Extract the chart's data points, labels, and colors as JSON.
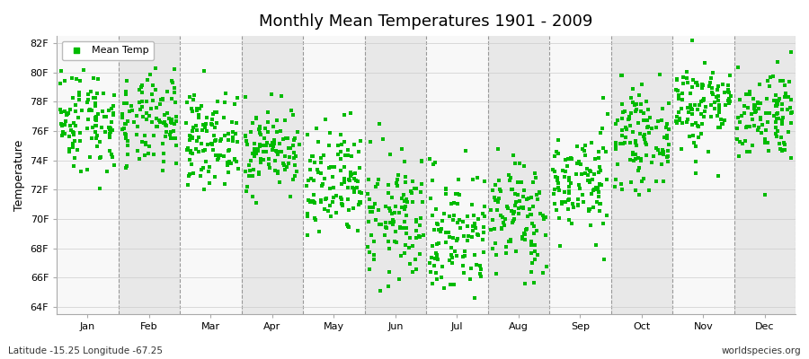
{
  "title": "Monthly Mean Temperatures 1901 - 2009",
  "ylabel": "Temperature",
  "xlabel_months": [
    "Jan",
    "Feb",
    "Mar",
    "Apr",
    "May",
    "Jun",
    "Jul",
    "Aug",
    "Sep",
    "Oct",
    "Nov",
    "Dec"
  ],
  "ytick_labels": [
    "64F",
    "66F",
    "68F",
    "70F",
    "72F",
    "74F",
    "76F",
    "78F",
    "80F",
    "82F"
  ],
  "ytick_values": [
    64,
    66,
    68,
    70,
    72,
    74,
    76,
    78,
    80,
    82
  ],
  "ylim": [
    63.5,
    82.5
  ],
  "dot_color": "#00BB00",
  "bg_color_light": "#e8e8e8",
  "bg_color_white": "#f8f8f8",
  "footnote_left": "Latitude -15.25 Longitude -67.25",
  "footnote_right": "worldspecies.org",
  "legend_label": "Mean Temp",
  "n_years": 109,
  "seed": 42,
  "monthly_means": [
    76.8,
    76.5,
    75.5,
    74.8,
    72.2,
    70.0,
    69.0,
    70.2,
    72.5,
    75.5,
    77.8,
    77.2
  ],
  "monthly_stds": [
    1.8,
    1.6,
    1.5,
    1.4,
    2.0,
    2.2,
    2.2,
    2.0,
    1.8,
    1.6,
    1.6,
    1.6
  ]
}
